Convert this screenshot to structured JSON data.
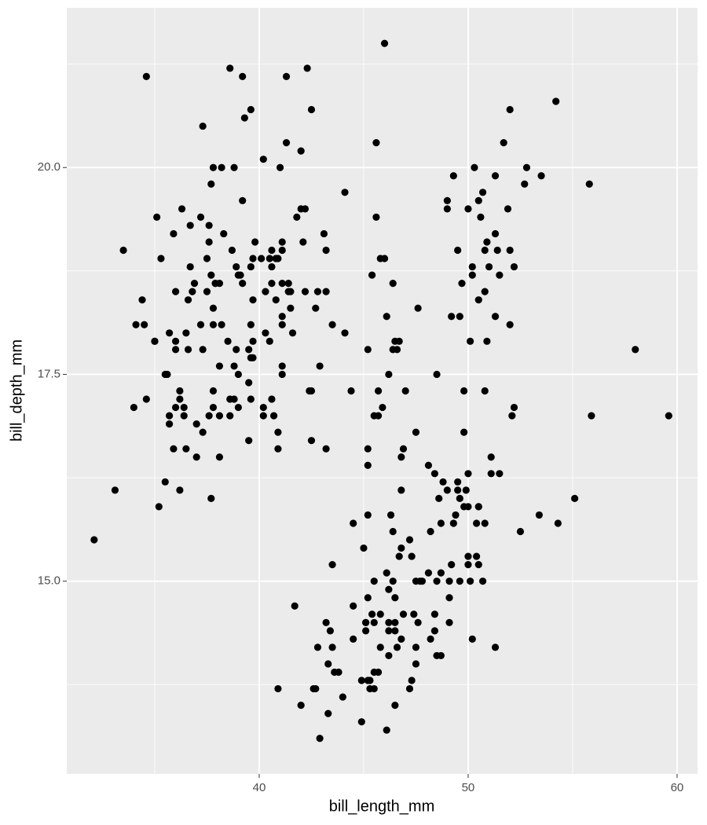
{
  "chart_data": {
    "type": "scatter",
    "x_label": "bill_length_mm",
    "y_label": "bill_depth_mm",
    "xlim": [
      30.79,
      60.98
    ],
    "ylim": [
      12.67,
      21.93
    ],
    "xticks": [
      40,
      50,
      60
    ],
    "yticks": [
      {
        "value": 15,
        "label": "15.0"
      },
      17.5,
      {
        "value": 20,
        "label": "20.0"
      }
    ],
    "grid": true,
    "minor_grid": true,
    "color": "#000000",
    "x": [
      39.1,
      39.5,
      40.3,
      36.7,
      39.3,
      38.9,
      39.2,
      34.1,
      42,
      37.8,
      37.8,
      41.1,
      38.6,
      34.6,
      36.6,
      38.7,
      42.5,
      34.4,
      46,
      37.8,
      37.7,
      35.9,
      38.2,
      38.8,
      35.3,
      40.6,
      40.5,
      37.9,
      40.5,
      39.5,
      37.2,
      39.5,
      40.9,
      36.4,
      39.2,
      38.8,
      42.2,
      37.6,
      39.8,
      36.5,
      40.8,
      36,
      44.1,
      37,
      39.6,
      41.1,
      37.5,
      36,
      42.3,
      39.6,
      40.1,
      35,
      42,
      34.5,
      41.4,
      39,
      40.6,
      36.5,
      37.6,
      35.7,
      41.3,
      37.6,
      41.1,
      36.4,
      41.6,
      35.5,
      41.1,
      35.9,
      41.8,
      33.5,
      39.7,
      39.6,
      45.8,
      35.5,
      42.8,
      40.9,
      37.2,
      36.2,
      42.1,
      34.6,
      42.9,
      36.7,
      35.1,
      37.3,
      41.3,
      36.3,
      36.9,
      38.3,
      38.9,
      35.7,
      41.1,
      34,
      39.6,
      36.2,
      40.8,
      38.1,
      40.3,
      33.1,
      43.2,
      35,
      41,
      37.7,
      37.8,
      37.9,
      39.7,
      38.6,
      38.2,
      38.1,
      43.2,
      38.1,
      45.6,
      39.7,
      42.2,
      39.6,
      42.7,
      38.6,
      37.3,
      35.7,
      41.1,
      36.2,
      37.7,
      40.2,
      41.4,
      35.2,
      40.6,
      38.8,
      41.5,
      39,
      44.1,
      38.5,
      43.1,
      36.8,
      37.5,
      38.1,
      41.1,
      35.6,
      40.2,
      37,
      39.7,
      40.2,
      40.6,
      32.1,
      40.7,
      37.3,
      39,
      39.2,
      36.6,
      36,
      37.8,
      36,
      41.5,
      46.1,
      50,
      48.7,
      50,
      47.6,
      46.5,
      45.4,
      46.7,
      43.3,
      46.8,
      40.9,
      49,
      45.5,
      48.4,
      45.8,
      49.3,
      42,
      49.2,
      46.2,
      48.7,
      50.2,
      45.1,
      46.5,
      46.3,
      42.9,
      46.1,
      44.5,
      47.8,
      48.2,
      50,
      47.3,
      42.8,
      45.1,
      59.6,
      49.1,
      48.4,
      42.6,
      44.4,
      44,
      48.7,
      42.7,
      49.6,
      45.3,
      49.6,
      50.5,
      43.6,
      45.5,
      50.5,
      44.9,
      45.2,
      46.6,
      48.5,
      45.1,
      50.1,
      46.5,
      45,
      43.8,
      45.5,
      43.2,
      50.4,
      45.3,
      46.2,
      45.7,
      54.3,
      45.8,
      49.8,
      46.2,
      49.5,
      43.5,
      50.7,
      47.7,
      46.4,
      48.2,
      46.5,
      46.4,
      48.6,
      47.5,
      51.1,
      45.2,
      45.2,
      49.1,
      52.5,
      47.4,
      50,
      44.9,
      50.8,
      43.4,
      51.3,
      47.5,
      52.1,
      47.5,
      52.2,
      45.5,
      49.5,
      44.5,
      50.8,
      49.4,
      46.9,
      48.4,
      51.1,
      48.5,
      55.9,
      47.2,
      49.1,
      47.3,
      46.8,
      41.7,
      53.4,
      43.3,
      48.1,
      50.5,
      49.8,
      43.5,
      51.5,
      46.2,
      55.1,
      44.5,
      48.8,
      47.2,
      46.8,
      50.4,
      45.2,
      49.9,
      46.5,
      50,
      51.3,
      45.4,
      52.7,
      45.2,
      46.1,
      51.3,
      46,
      51.3,
      46.6,
      51.7,
      47,
      52,
      45.9,
      50.5,
      50.3,
      58,
      46.4,
      49.2,
      42.4,
      48.5,
      43.2,
      50.6,
      46.7,
      52,
      50.5,
      49.5,
      46.4,
      52.8,
      40.9,
      54.2,
      42.5,
      51,
      49.7,
      47.5,
      47.6,
      52,
      46.9,
      53.5,
      49,
      46.2,
      50.9,
      45.5,
      50.9,
      50.8,
      50.1,
      49,
      51.5,
      49.8,
      48.1,
      51.4,
      45.7,
      50.7,
      42.5,
      52.2,
      45.2,
      49.3,
      50.2,
      45.6,
      51.9,
      46.8,
      45.7,
      55.8,
      43.5,
      49.6,
      50.8,
      50.2
    ],
    "y": [
      18.7,
      17.4,
      18,
      19.3,
      20.6,
      17.8,
      19.6,
      18.1,
      20.2,
      17.1,
      17.3,
      17.6,
      21.2,
      21.1,
      17.8,
      19,
      20.7,
      18.4,
      21.5,
      18.3,
      18.7,
      19.2,
      18.1,
      17.2,
      18.9,
      18.6,
      17.9,
      18.6,
      18.9,
      16.7,
      18.1,
      17.8,
      18.9,
      17,
      21.1,
      20,
      18.5,
      19.3,
      19.1,
      18,
      18.4,
      18.5,
      19.7,
      16.9,
      18.8,
      19,
      18.9,
      17.9,
      21.2,
      17.7,
      18.9,
      17.9,
      19.5,
      18.1,
      18.6,
      17.5,
      18.8,
      16.6,
      19.1,
      16.9,
      21.1,
      17,
      18.2,
      17.1,
      18,
      16.2,
      19.1,
      16.6,
      19.4,
      19,
      18.4,
      17.2,
      18.9,
      17.5,
      18.5,
      16.8,
      19.4,
      16.1,
      19.1,
      17.2,
      17.6,
      18.8,
      19.4,
      17.8,
      20.3,
      19.5,
      18.6,
      19.2,
      18.8,
      18,
      18.1,
      17.1,
      18.1,
      17.3,
      18.9,
      18.6,
      18.5,
      16.1,
      18.5,
      17.9,
      20,
      16,
      20,
      18.6,
      18.9,
      17.2,
      20,
      17,
      19,
      16.5,
      20.3,
      17.7,
      19.5,
      20.7,
      18.3,
      17,
      20.5,
      17,
      18.6,
      17.2,
      19.8,
      17,
      18.5,
      15.9,
      19,
      17.6,
      18.3,
      17.1,
      18,
      17.9,
      19.2,
      18.5,
      18.5,
      17.6,
      17.5,
      17.5,
      20.1,
      16.5,
      17.9,
      17.1,
      17.2,
      15.5,
      17,
      16.8,
      18.7,
      18.6,
      18.4,
      17.8,
      18.1,
      17.1,
      18.5,
      13.2,
      16.3,
      14.1,
      15.2,
      14.5,
      13.5,
      14.6,
      15.3,
      13.4,
      15.4,
      13.7,
      16.1,
      13.7,
      14.6,
      14.6,
      15.7,
      13.5,
      15.2,
      14.5,
      15.1,
      14.3,
      14.5,
      14.5,
      15.8,
      13.1,
      15.1,
      14.3,
      15,
      14.3,
      15.3,
      15.3,
      14.2,
      14.5,
      17,
      14.8,
      16.3,
      13.7,
      17.3,
      13.6,
      15.7,
      13.7,
      16,
      13.7,
      15,
      15.9,
      13.9,
      13.9,
      15.9,
      13.3,
      15.8,
      14.2,
      14.1,
      14.4,
      15,
      14.4,
      15.4,
      13.9,
      15,
      14.5,
      15.3,
      13.8,
      14.9,
      13.9,
      15.7,
      14.2,
      16.8,
      14.4,
      16.2,
      14.2,
      15,
      15,
      15.6,
      15.6,
      14.8,
      15,
      16,
      14.2,
      16.3,
      13.8,
      16.4,
      14.5,
      15.6,
      14.6,
      15.9,
      13.8,
      17.3,
      14.4,
      14.2,
      14,
      17,
      15,
      17.1,
      14.5,
      16.1,
      14.7,
      15.7,
      15.8,
      14.6,
      14.4,
      16.5,
      15,
      17,
      15.5,
      15,
      13.8,
      16.1,
      14.7,
      15.8,
      14,
      15.1,
      15.2,
      15.9,
      15.2,
      16.3,
      14.1,
      16,
      15.7,
      16.2,
      13.7,
      14.3,
      15.7,
      14.8,
      16.1,
      17.9,
      19.5,
      19.2,
      18.7,
      19.8,
      17.8,
      18.2,
      18.2,
      18.9,
      19.9,
      17.8,
      20.3,
      17.3,
      18.1,
      17.1,
      19.6,
      20,
      17.8,
      18.6,
      18.2,
      17.3,
      17.5,
      16.6,
      19.4,
      17.9,
      19,
      18.4,
      19,
      17.8,
      20,
      16.6,
      20.8,
      16.7,
      18.8,
      18.6,
      16.8,
      18.3,
      20.7,
      16.6,
      19.9,
      19.5,
      17.5,
      19.1,
      17,
      17.9,
      18.5,
      17.9,
      19.6,
      18.7,
      17.3,
      16.4,
      19,
      17.3,
      19.7,
      17.3,
      18.8,
      16.6,
      19.9,
      18.8,
      19.4,
      19.5,
      16.5,
      17,
      19.8,
      18.1,
      18.2,
      19,
      18.7
    ]
  }
}
